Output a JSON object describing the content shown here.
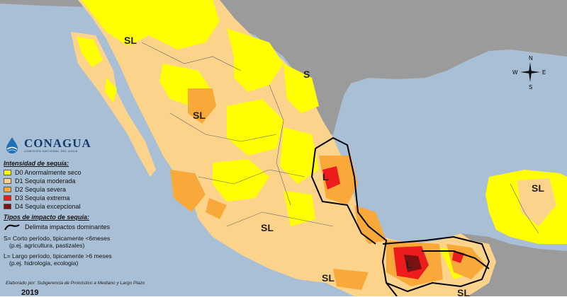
{
  "colors": {
    "water": "#a9bfd6",
    "land_other": "#9b9b9b",
    "no_drought": "#ffffff",
    "d0": "#ffff00",
    "d1": "#fcd38b",
    "d2": "#f8a93a",
    "d3": "#ee1c1c",
    "d4": "#7b1212",
    "boundary": "#000000"
  },
  "logo": {
    "name": "CONAGUA",
    "subtitle": "COMISIÓN NACIONAL DEL AGUA",
    "icon": "water-drop-wave-icon"
  },
  "legend": {
    "intensity_title": "Intensidad de sequía:",
    "intensity": [
      {
        "code": "D0",
        "label": "D0 Anormalmente seco",
        "color": "#ffff00"
      },
      {
        "code": "D1",
        "label": "D1 Sequía moderada",
        "color": "#fcd38b"
      },
      {
        "code": "D2",
        "label": "D2 Sequía severa",
        "color": "#f8a93a"
      },
      {
        "code": "D3",
        "label": "D3 Sequía extrema",
        "color": "#ee1c1c"
      },
      {
        "code": "D4",
        "label": "D4 Sequía excepcional",
        "color": "#7b1212"
      }
    ],
    "types_title": "Tipos de impacto de sequía:",
    "boundary_label": "Delimita impactos dominantes",
    "short_line1": "S= Corto período, tipicamente <6meses",
    "short_line2": "(p.ej. agricultura, pastizales)",
    "long_line1": "L= Largo período, tipicamente >6 meses",
    "long_line2": "(p.ej. hidrologia, ecologia)"
  },
  "footer": {
    "credit": "Elaborado por: Subgerencia de Pronóstico a Mediano y Largo Plazo",
    "year": "2019"
  },
  "compass": {
    "n": "N",
    "s": "S",
    "e": "E",
    "w": "W"
  },
  "map_labels": {
    "sl_north": "SL",
    "s_northeast": "S",
    "sl_central": "SL",
    "l_huasteca": "L",
    "sl_west": "SL",
    "sl_guerrero": "SL",
    "l_south": "L",
    "sl_yucatan": "SL",
    "sl_chiapas": "SL"
  }
}
